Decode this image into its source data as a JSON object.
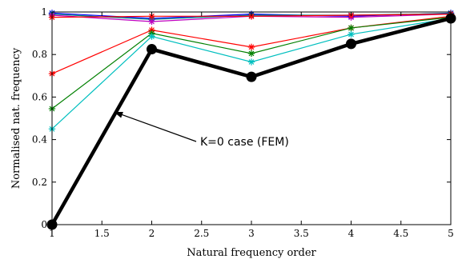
{
  "chart_data": {
    "type": "line",
    "xlabel": "Natural frequency order",
    "ylabel": "Normalised nat. frequency",
    "xlim": [
      1,
      5
    ],
    "ylim": [
      0,
      1
    ],
    "xticks": [
      "1",
      "1.5",
      "2",
      "2.5",
      "3",
      "3.5",
      "4",
      "4.5",
      "5"
    ],
    "yticks": [
      "0",
      "0.2",
      "0.4",
      "0.6",
      "0.8",
      "1"
    ],
    "grid": false,
    "x": [
      1,
      2,
      3,
      4,
      5
    ],
    "series": [
      {
        "color": "#0000ff",
        "marker": "asterisk",
        "values": [
          0.995,
          0.97,
          0.99,
          0.98,
          0.995
        ]
      },
      {
        "color": "#008080",
        "marker": "asterisk",
        "values": [
          0.99,
          0.965,
          0.985,
          0.985,
          0.993
        ]
      },
      {
        "color": "#bf00bf",
        "marker": "asterisk",
        "values": [
          0.985,
          0.955,
          0.98,
          0.975,
          0.99
        ]
      },
      {
        "color": "#ff0000",
        "marker": "asterisk",
        "values": [
          0.71,
          0.915,
          0.835,
          0.925,
          0.98
        ]
      },
      {
        "color": "#008000",
        "marker": "asterisk",
        "values": [
          0.545,
          0.9,
          0.805,
          0.925,
          0.975
        ]
      },
      {
        "color": "#00bfbf",
        "marker": "asterisk",
        "values": [
          0.45,
          0.885,
          0.765,
          0.895,
          0.97
        ]
      },
      {
        "color": "#ff0000",
        "marker": "asterisk",
        "values": [
          0.975,
          0.98,
          0.98,
          0.985,
          0.99
        ]
      },
      {
        "color": "#000000",
        "marker": "circle",
        "thick": true,
        "values": [
          0.0,
          0.825,
          0.695,
          0.85,
          0.97
        ]
      }
    ],
    "annotation": {
      "text": "K=0 case (FEM)",
      "arrow_to": [
        1.62,
        0.53
      ]
    }
  }
}
